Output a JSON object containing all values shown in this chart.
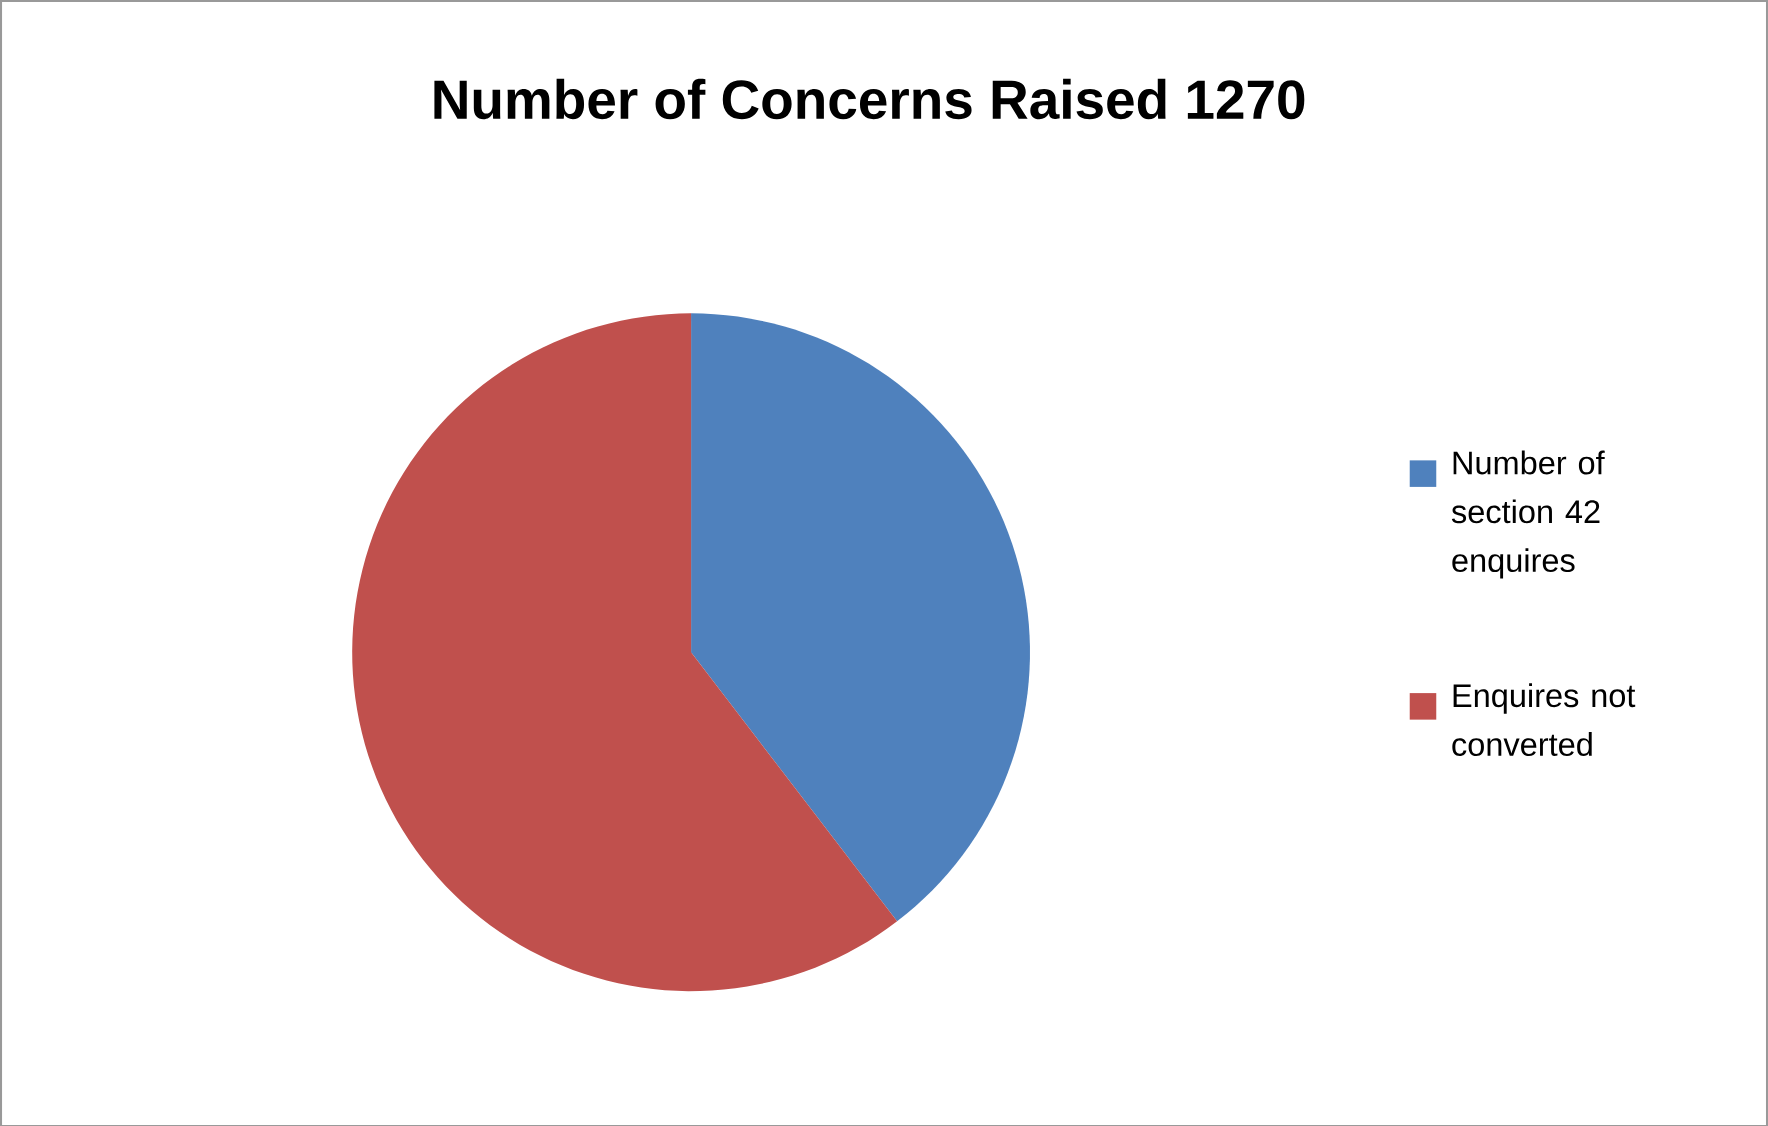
{
  "chart_data": {
    "type": "pie",
    "title": "Number of Concerns Raised 1270",
    "categories": [
      "Number of section 42 enquires",
      "Enquires not converted"
    ],
    "values": [
      39.6,
      60.4
    ],
    "colors": [
      "#4f81bd",
      "#c0504d"
    ],
    "legend": "right"
  }
}
